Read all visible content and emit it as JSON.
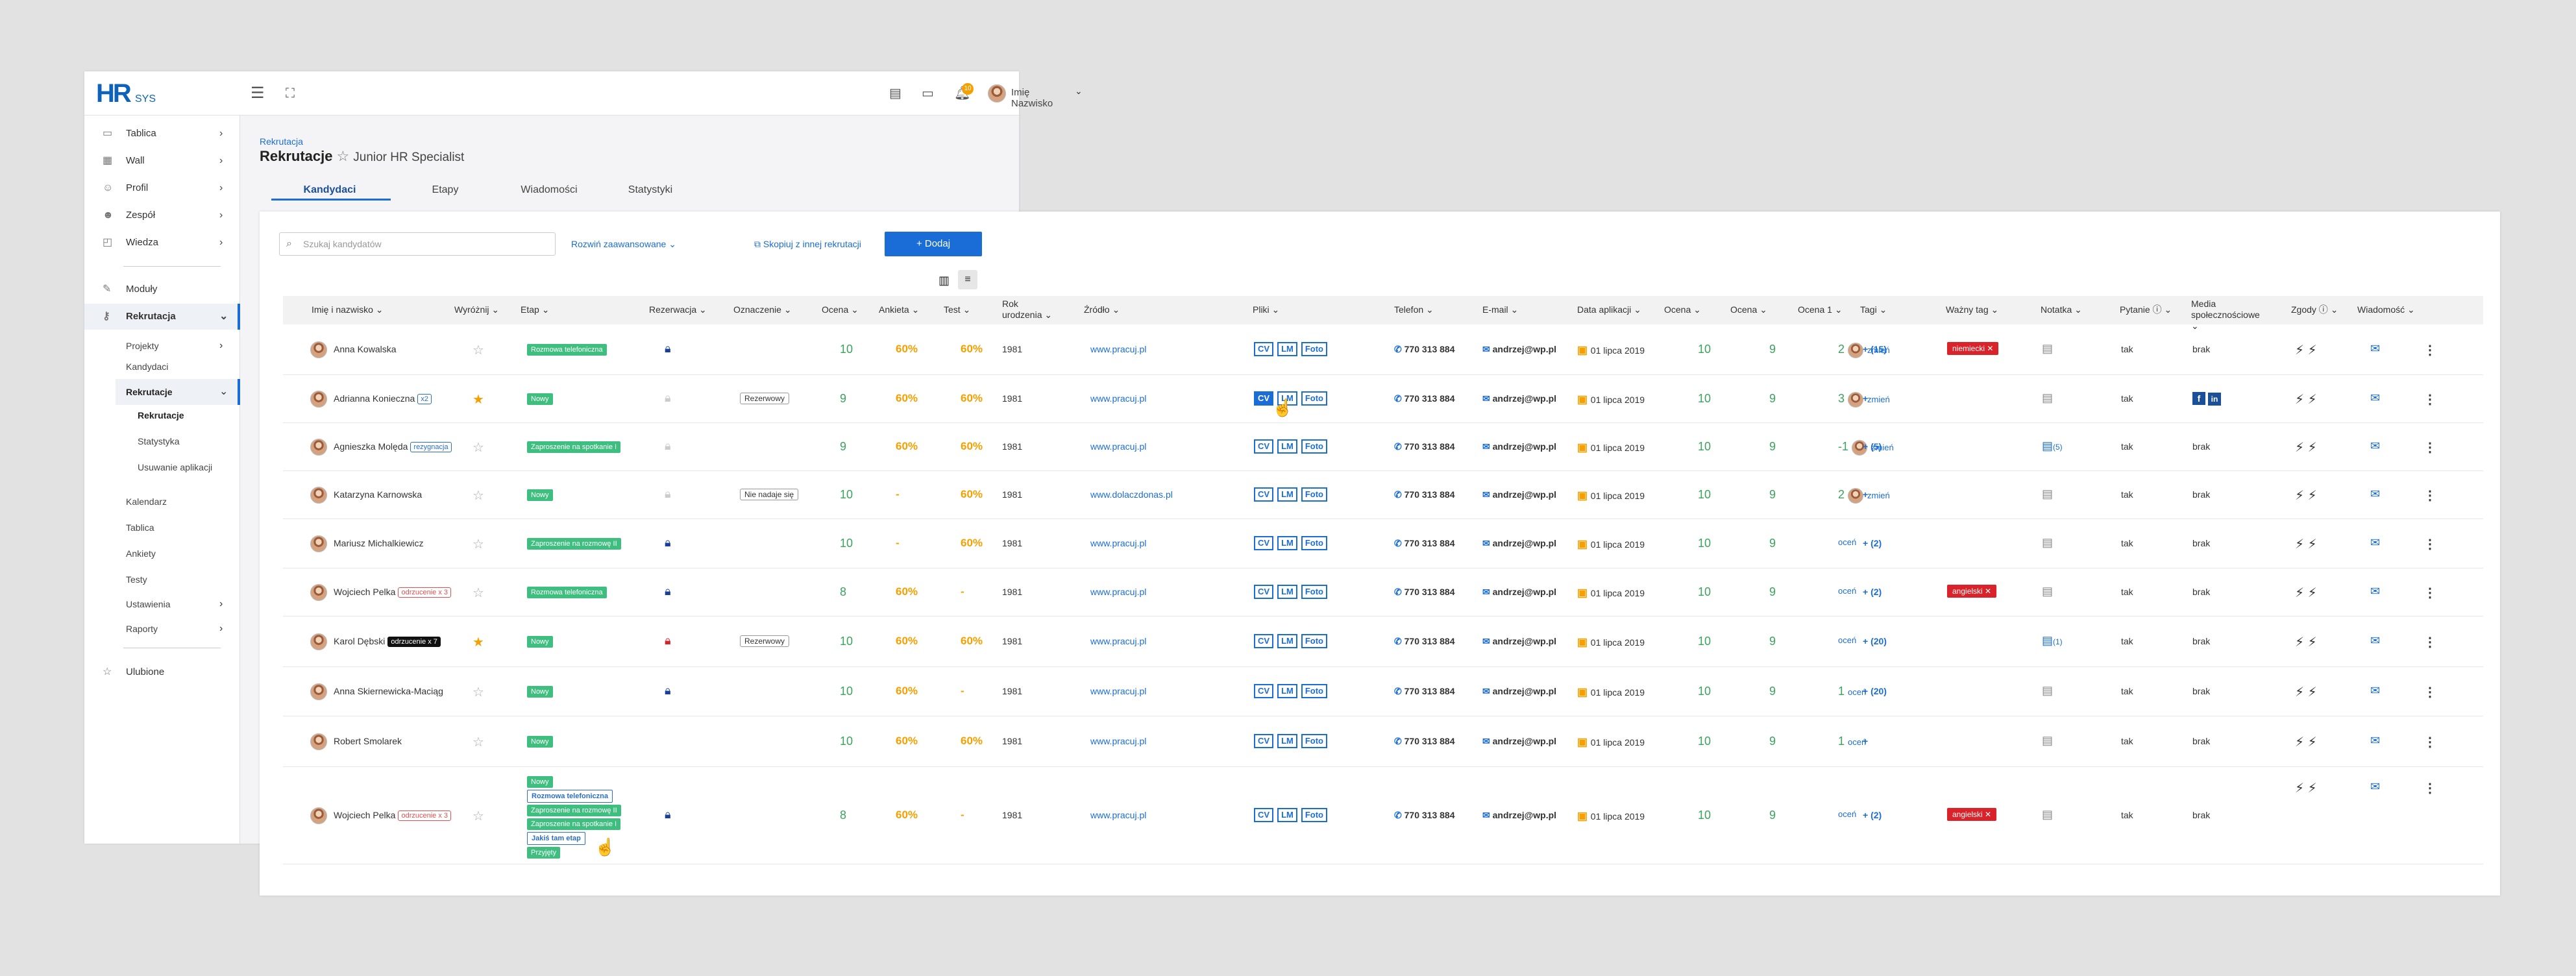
{
  "app": {
    "logo_main": "HR",
    "logo_sub": "SYS",
    "user": "Imię Nazwisko",
    "notif_count": "10"
  },
  "sidebar": {
    "items": [
      {
        "label": "Tablica",
        "icon": "monitor-icon",
        "chev": true
      },
      {
        "label": "Wall",
        "icon": "wall-icon",
        "chev": true
      },
      {
        "label": "Profil",
        "icon": "user-icon",
        "chev": true
      },
      {
        "label": "Zespół",
        "icon": "team-icon",
        "chev": true
      },
      {
        "label": "Wiedza",
        "icon": "book-icon",
        "chev": true
      },
      {
        "label": "Moduły",
        "icon": "puzzle-icon",
        "chev": false
      },
      {
        "label": "Rekrutacja",
        "icon": "key-icon",
        "chev": true
      }
    ],
    "sub": [
      "Projekty",
      "Kandydaci",
      "Rekrutacje",
      "Rekrutacje",
      "Statystyka",
      "Usuwanie aplikacji",
      "Kalendarz",
      "Tablica",
      "Ankiety",
      "Testy",
      "Ustawienia",
      "Raporty"
    ],
    "fav": "Ulubione"
  },
  "page": {
    "breadcrumb": "Rekrutacja",
    "title": "Rekrutacje",
    "subtitle": "Junior HR Specialist"
  },
  "tabs": [
    "Kandydaci",
    "Etapy",
    "Wiadomości",
    "Statystyki"
  ],
  "toolbar": {
    "search_placeholder": "Szukaj kandydatów",
    "advanced": "Rozwiń zaawansowane",
    "copy": "Skopiuj z innej rekrutacji",
    "add": "+ Dodaj"
  },
  "columns": [
    "Imię i nazwisko",
    "Wyróżnij",
    "Etap",
    "Rezerwacja",
    "Oznaczenie",
    "Ocena",
    "Ankieta",
    "Test",
    "Rok urodzenia",
    "Źródło",
    "Pliki",
    "Telefon",
    "E-mail",
    "Data aplikacji",
    "Ocena",
    "Ocena",
    "Ocena 1",
    "Tagi",
    "Ważny tag",
    "Notatka",
    "Pytanie",
    "Media społecznościowe",
    "Zgody",
    "Wiadomość"
  ],
  "rows": [
    {
      "name": "Anna Kowalska",
      "badge": "",
      "star": false,
      "etap": "Rozmowa telefoniczna",
      "lock": "blue",
      "ozn": "",
      "ocena": "10",
      "ankieta": "60%",
      "test": "60%",
      "rok": "1981",
      "zrodlo": "www.pracuj.pl",
      "tel": "770 313 884",
      "email": "andrzej@wp.pl",
      "data": "01 lipca 2019",
      "o1": "10",
      "o2": "9",
      "o3": "2",
      "zmien": "zmień",
      "tagi": "+ (15)",
      "wazny": "niemiecki",
      "notatka": "",
      "pytanie": "tak",
      "media": "brak"
    },
    {
      "name": "Adrianna Konieczna",
      "badge": "x2",
      "star": true,
      "etap": "Nowy",
      "lock": "grey",
      "ozn": "Rezerwowy",
      "ocena": "9",
      "ankieta": "60%",
      "test": "60%",
      "rok": "1981",
      "zrodlo": "www.pracuj.pl",
      "tel": "770 313 884",
      "email": "andrzej@wp.pl",
      "data": "01 lipca 2019",
      "o1": "10",
      "o2": "9",
      "o3": "3",
      "zmien": "zmień",
      "tagi": "+",
      "wazny": "",
      "notatka": "",
      "pytanie": "tak",
      "media": "fb-in"
    },
    {
      "name": "Agnieszka Molęda",
      "badge": "rezygnacja",
      "star": false,
      "etap": "Zaproszenie na spotkanie I",
      "lock": "grey",
      "ozn": "",
      "ocena": "9",
      "ankieta": "60%",
      "test": "60%",
      "rok": "1981",
      "zrodlo": "www.pracuj.pl",
      "tel": "770 313 884",
      "email": "andrzej@wp.pl",
      "data": "01 lipca 2019",
      "o1": "10",
      "o2": "9",
      "o3": "-1",
      "zmien": "zmień",
      "tagi": "+ (5)",
      "wazny": "",
      "notatka": "(5)",
      "pytanie": "tak",
      "media": "brak"
    },
    {
      "name": "Katarzyna Karnowska",
      "badge": "",
      "star": false,
      "etap": "Nowy",
      "lock": "grey",
      "ozn": "Nie nadaje się",
      "ocena": "10",
      "ankieta": "-",
      "test": "60%",
      "rok": "1981",
      "zrodlo": "www.dolaczdonas.pl",
      "tel": "770 313 884",
      "email": "andrzej@wp.pl",
      "data": "01 lipca 2019",
      "o1": "10",
      "o2": "9",
      "o3": "2",
      "zmien": "zmień",
      "tagi": "+",
      "wazny": "",
      "notatka": "",
      "pytanie": "tak",
      "media": "brak"
    },
    {
      "name": "Mariusz Michalkiewicz",
      "badge": "",
      "star": false,
      "etap": "Zaproszenie na rozmowę II",
      "lock": "blue",
      "ozn": "",
      "ocena": "10",
      "ankieta": "-",
      "test": "60%",
      "rok": "1981",
      "zrodlo": "www.pracuj.pl",
      "tel": "770 313 884",
      "email": "andrzej@wp.pl",
      "data": "01 lipca 2019",
      "o1": "10",
      "o2": "9",
      "o3": "",
      "zmien": "oceń",
      "tagi": "+ (2)",
      "wazny": "",
      "notatka": "",
      "pytanie": "tak",
      "media": "brak"
    },
    {
      "name": "Wojciech Pelka",
      "badge": "odrzucenie x 3",
      "star": false,
      "etap": "Rozmowa telefoniczna",
      "lock": "blue",
      "ozn": "",
      "ocena": "8",
      "ankieta": "60%",
      "test": "-",
      "rok": "1981",
      "zrodlo": "www.pracuj.pl",
      "tel": "770 313 884",
      "email": "andrzej@wp.pl",
      "data": "01 lipca 2019",
      "o1": "10",
      "o2": "9",
      "o3": "",
      "zmien": "oceń",
      "tagi": "+ (2)",
      "wazny": "angielski",
      "notatka": "",
      "pytanie": "tak",
      "media": "brak"
    },
    {
      "name": "Karol Dębski",
      "badge": "odrzucenie x 7",
      "star": true,
      "etap": "Nowy",
      "lock": "red",
      "ozn": "Rezerwowy",
      "ocena": "10",
      "ankieta": "60%",
      "test": "60%",
      "rok": "1981",
      "zrodlo": "www.pracuj.pl",
      "tel": "770 313 884",
      "email": "andrzej@wp.pl",
      "data": "01 lipca 2019",
      "o1": "10",
      "o2": "9",
      "o3": "",
      "zmien": "oceń",
      "tagi": "+ (20)",
      "wazny": "",
      "notatka": "(1)",
      "pytanie": "tak",
      "media": "brak"
    },
    {
      "name": "Anna Skiernewicka-Maciąg",
      "badge": "",
      "star": false,
      "etap": "Nowy",
      "lock": "blue",
      "ozn": "",
      "ocena": "10",
      "ankieta": "60%",
      "test": "-",
      "rok": "1981",
      "zrodlo": "www.pracuj.pl",
      "tel": "770 313 884",
      "email": "andrzej@wp.pl",
      "data": "01 lipca 2019",
      "o1": "10",
      "o2": "9",
      "o3": "1",
      "zmien": "oceń",
      "tagi": "+ (20)",
      "wazny": "",
      "notatka": "",
      "pytanie": "tak",
      "media": "brak"
    },
    {
      "name": "Robert Smolarek",
      "badge": "",
      "star": false,
      "etap": "Nowy",
      "lock": "",
      "ozn": "",
      "ocena": "10",
      "ankieta": "60%",
      "test": "60%",
      "rok": "1981",
      "zrodlo": "www.pracuj.pl",
      "tel": "770 313 884",
      "email": "andrzej@wp.pl",
      "data": "01 lipca 2019",
      "o1": "10",
      "o2": "9",
      "o3": "1",
      "zmien": "oceń",
      "tagi": "+",
      "wazny": "",
      "notatka": "",
      "pytanie": "tak",
      "media": "brak"
    },
    {
      "name": "Wojciech Pelka",
      "badge": "odrzucenie x 3",
      "star": false,
      "etap": "dropdown",
      "lock": "blue",
      "ozn": "",
      "ocena": "8",
      "ankieta": "60%",
      "test": "-",
      "rok": "1981",
      "zrodlo": "www.pracuj.pl",
      "tel": "770 313 884",
      "email": "andrzej@wp.pl",
      "data": "01 lipca 2019",
      "o1": "10",
      "o2": "9",
      "o3": "",
      "zmien": "oceń",
      "tagi": "+ (2)",
      "wazny": "angielski",
      "notatka": "",
      "pytanie": "tak",
      "media": "brak"
    }
  ],
  "files": [
    "CV",
    "LM",
    "Foto"
  ],
  "etap_dropdown": [
    "Nowy",
    "Rozmowa telefoniczna",
    "Zaproszenie na rozmowę II",
    "Zaproszenie na spotkanie I",
    "Jakiś tam etap",
    "Przyjęty"
  ],
  "colors": {
    "accent": "#1a6dd6",
    "green": "#3fbf7f",
    "orange": "#f5a000",
    "red": "#d9222a"
  }
}
